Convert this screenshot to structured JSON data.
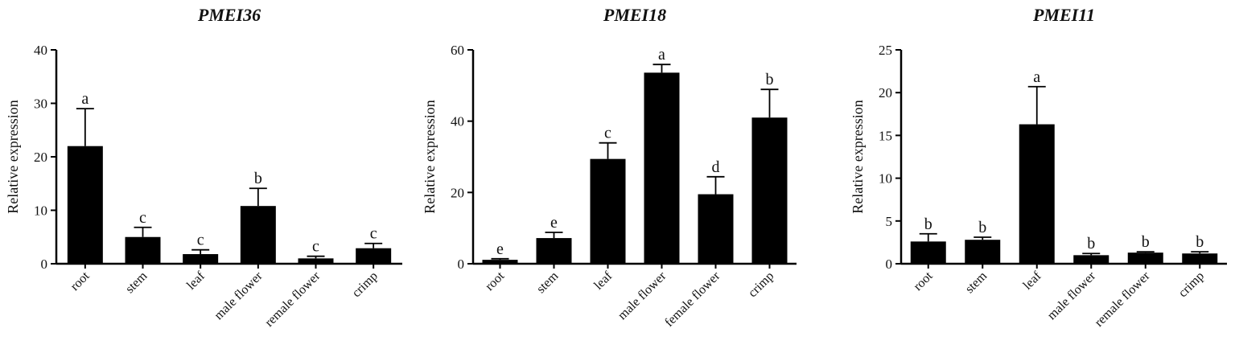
{
  "chart_data": [
    {
      "type": "bar",
      "title": "PMEI36",
      "ylabel": "Relative expression",
      "categories": [
        "root",
        "stem",
        "leaf",
        "male flower",
        "remale flower",
        "crimp"
      ],
      "values": [
        22.0,
        5.0,
        1.8,
        10.8,
        1.0,
        2.9
      ],
      "errors": [
        7.0,
        1.8,
        0.8,
        3.3,
        0.4,
        0.9
      ],
      "annotations": [
        "a",
        "c",
        "c",
        "b",
        "c",
        "c"
      ],
      "color": "#000000",
      "ylim": [
        0,
        40
      ],
      "yticks": [
        0,
        10,
        20,
        30,
        40
      ]
    },
    {
      "type": "bar",
      "title": "PMEI18",
      "ylabel": "Relative expression",
      "categories": [
        "root",
        "stem",
        "leaf",
        "male flower",
        "female flower",
        "crimp"
      ],
      "values": [
        1.1,
        7.2,
        29.4,
        53.6,
        19.5,
        41.0
      ],
      "errors": [
        0.3,
        1.6,
        4.5,
        2.3,
        4.9,
        7.9
      ],
      "annotations": [
        "e",
        "e",
        "c",
        "a",
        "d",
        "b"
      ],
      "color": "#000000",
      "ylim": [
        0,
        60
      ],
      "yticks": [
        0,
        20,
        40,
        60
      ]
    },
    {
      "type": "bar",
      "title": "PMEI11",
      "ylabel": "Relative expression",
      "categories": [
        "root",
        "stem",
        "leaf",
        "male flower",
        "remale flower",
        "crimp"
      ],
      "values": [
        2.6,
        2.8,
        16.3,
        1.0,
        1.3,
        1.2
      ],
      "errors": [
        0.9,
        0.3,
        4.4,
        0.2,
        0.1,
        0.2
      ],
      "annotations": [
        "b",
        "b",
        "a",
        "b",
        "b",
        "b"
      ],
      "color": "#000000",
      "ylim": [
        0,
        25
      ],
      "yticks": [
        0,
        5,
        10,
        15,
        20,
        25
      ]
    }
  ]
}
